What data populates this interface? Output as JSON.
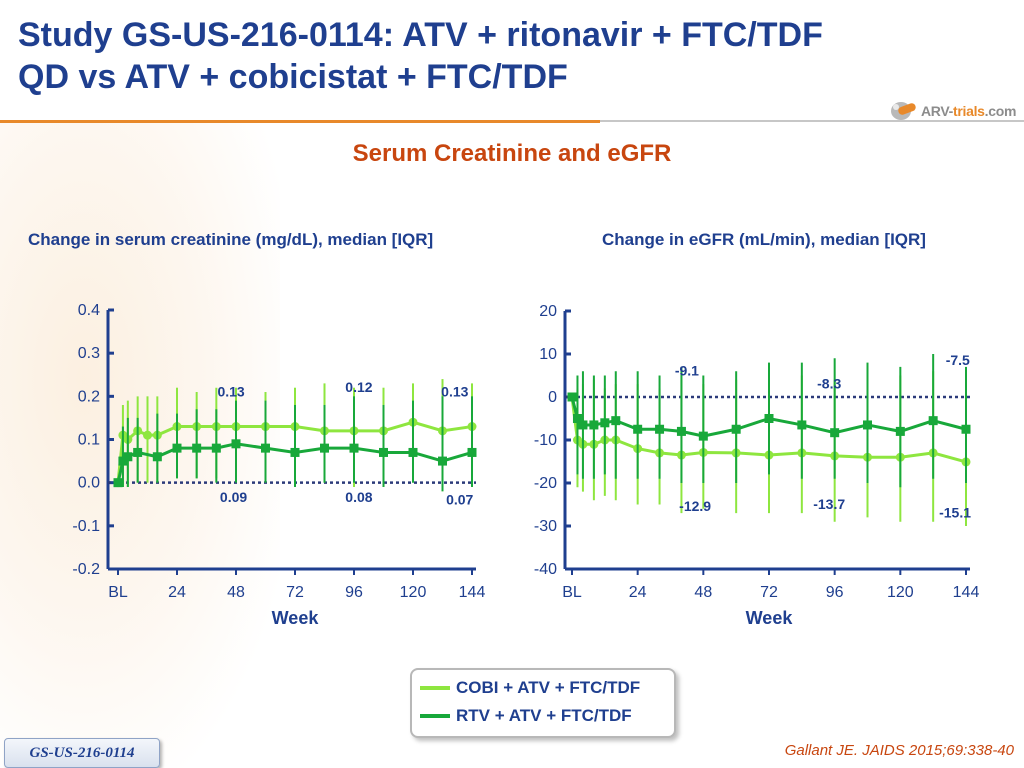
{
  "title_lines": [
    "Study GS-US-216-0114: ATV + ritonavir + FTC/TDF",
    "QD vs ATV + cobicistat + FTC/TDF"
  ],
  "logo": {
    "part1": "ARV-",
    "part2": "trials",
    "part3": ".com"
  },
  "subtitle": "Serum Creatinine and eGFR",
  "legend": {
    "cobi": {
      "label": "COBI + ATV + FTC/TDF",
      "color": "#8ee63f"
    },
    "rtv": {
      "label": "RTV + ATV + FTC/TDF",
      "color": "#18a83a"
    }
  },
  "badge": "GS-US-216-0114",
  "citation": "Gallant JE. JAIDS 2015;69:338-40",
  "chart_data": [
    {
      "type": "line",
      "title": "Change in serum creatinine (mg/dL), median [IQR]",
      "xlabel": "Week",
      "ylabel": "",
      "x_ticks": [
        0,
        24,
        48,
        72,
        96,
        120,
        144
      ],
      "x_tick_labels": [
        "BL",
        "24",
        "48",
        "72",
        "96",
        "120",
        "144"
      ],
      "xlim": [
        0,
        144
      ],
      "ylim": [
        -0.2,
        0.4
      ],
      "y_ticks": [
        -0.2,
        -0.1,
        0.0,
        0.1,
        0.2,
        0.3,
        0.4
      ],
      "y_tick_labels": [
        "-0.2",
        "-0.1",
        "0.0",
        "0.1",
        "0.2",
        "0.3",
        "0.4"
      ],
      "reference_line": 0,
      "series": [
        {
          "name": "COBI + ATV + FTC/TDF",
          "color": "#8ee63f",
          "marker": "circle",
          "x": [
            0,
            2,
            4,
            8,
            12,
            16,
            24,
            32,
            40,
            48,
            60,
            72,
            84,
            96,
            108,
            120,
            132,
            144
          ],
          "y": [
            0.0,
            0.11,
            0.1,
            0.12,
            0.11,
            0.11,
            0.13,
            0.13,
            0.13,
            0.13,
            0.13,
            0.13,
            0.12,
            0.12,
            0.12,
            0.14,
            0.12,
            0.13
          ],
          "y_low": [
            -0.01,
            -0.01,
            -0.01,
            0.0,
            0.0,
            0.0,
            0.01,
            0.01,
            0.01,
            0.01,
            0.0,
            0.01,
            0.0,
            -0.01,
            0.0,
            0.0,
            -0.02,
            0.0
          ],
          "y_high": [
            0.0,
            0.18,
            0.19,
            0.2,
            0.2,
            0.2,
            0.22,
            0.21,
            0.22,
            0.22,
            0.21,
            0.22,
            0.23,
            0.22,
            0.22,
            0.23,
            0.24,
            0.23
          ]
        },
        {
          "name": "RTV + ATV + FTC/TDF",
          "color": "#18a83a",
          "marker": "square",
          "x": [
            0,
            2,
            4,
            8,
            16,
            24,
            32,
            40,
            48,
            60,
            72,
            84,
            96,
            108,
            120,
            132,
            144
          ],
          "y": [
            0.0,
            0.05,
            0.06,
            0.07,
            0.06,
            0.08,
            0.08,
            0.08,
            0.09,
            0.08,
            0.07,
            0.08,
            0.08,
            0.07,
            0.07,
            0.05,
            0.07
          ],
          "y_low": [
            0.0,
            -0.01,
            -0.01,
            0.0,
            0.0,
            0.01,
            0.01,
            0.0,
            0.0,
            0.0,
            -0.01,
            0.0,
            0.0,
            -0.01,
            0.0,
            -0.02,
            -0.01
          ],
          "y_high": [
            0.0,
            0.13,
            0.15,
            0.15,
            0.16,
            0.16,
            0.17,
            0.17,
            0.19,
            0.19,
            0.18,
            0.18,
            0.2,
            0.18,
            0.19,
            0.2,
            0.2
          ]
        }
      ],
      "annotations": [
        {
          "text": "0.13",
          "x": 46,
          "y": 0.2
        },
        {
          "text": "0.12",
          "x": 98,
          "y": 0.21
        },
        {
          "text": "0.13",
          "x": 137,
          "y": 0.2
        },
        {
          "text": "0.09",
          "x": 47,
          "y": -0.045
        },
        {
          "text": "0.08",
          "x": 98,
          "y": -0.045
        },
        {
          "text": "0.07",
          "x": 139,
          "y": -0.05
        }
      ]
    },
    {
      "type": "line",
      "title": "Change in eGFR (mL/min), median [IQR]",
      "xlabel": "Week",
      "ylabel": "",
      "x_ticks": [
        0,
        24,
        48,
        72,
        96,
        120,
        144
      ],
      "x_tick_labels": [
        "BL",
        "24",
        "48",
        "72",
        "96",
        "120",
        "144"
      ],
      "xlim": [
        0,
        144
      ],
      "ylim": [
        -40,
        20
      ],
      "y_ticks": [
        -40,
        -30,
        -20,
        -10,
        0,
        10,
        20
      ],
      "y_tick_labels": [
        "-40",
        "-30",
        "-20",
        "-10",
        "0",
        "10",
        "20"
      ],
      "reference_line": 0,
      "series": [
        {
          "name": "COBI + ATV + FTC/TDF",
          "color": "#8ee63f",
          "marker": "circle",
          "x": [
            0,
            2,
            4,
            8,
            12,
            16,
            24,
            32,
            40,
            48,
            60,
            72,
            84,
            96,
            108,
            120,
            132,
            144
          ],
          "y": [
            0,
            -10,
            -11,
            -11,
            -10,
            -10,
            -12,
            -13,
            -13.5,
            -12.9,
            -13,
            -13.5,
            -13,
            -13.7,
            -14,
            -14,
            -13,
            -15.1
          ],
          "y_low": [
            0,
            -21,
            -22,
            -24,
            -23,
            -24,
            -25,
            -25,
            -27,
            -26,
            -27,
            -27,
            -27,
            -29,
            -28,
            -29,
            -29,
            -30
          ],
          "y_high": [
            0,
            2,
            3,
            4,
            2,
            3,
            3,
            2,
            4,
            3,
            4,
            4,
            5,
            4,
            5,
            5,
            6,
            4
          ]
        },
        {
          "name": "RTV + ATV + FTC/TDF",
          "color": "#18a83a",
          "marker": "square",
          "x": [
            0,
            2,
            4,
            8,
            12,
            16,
            24,
            32,
            40,
            48,
            60,
            72,
            84,
            96,
            108,
            120,
            132,
            144
          ],
          "y": [
            0,
            -5,
            -6.5,
            -6.5,
            -6,
            -5.5,
            -7.5,
            -7.5,
            -8,
            -9.1,
            -7.5,
            -5,
            -6.5,
            -8.3,
            -6.5,
            -8,
            -5.5,
            -7.5
          ],
          "y_low": [
            0,
            -18,
            -19,
            -19,
            -18,
            -19,
            -19,
            -19,
            -20,
            -20,
            -20,
            -18,
            -19,
            -19,
            -20,
            -21,
            -19,
            -20
          ],
          "y_high": [
            0,
            5,
            6,
            5,
            5,
            6,
            6,
            5,
            7,
            5,
            6,
            8,
            8,
            9,
            8,
            7,
            10,
            7
          ]
        }
      ],
      "annotations": [
        {
          "text": "-9.1",
          "x": 42,
          "y": 5
        },
        {
          "text": "-8.3",
          "x": 94,
          "y": 2
        },
        {
          "text": "-7.5",
          "x": 141,
          "y": 7.5
        },
        {
          "text": "-12.9",
          "x": 45,
          "y": -26.5
        },
        {
          "text": "-13.7",
          "x": 94,
          "y": -26
        },
        {
          "text": "-15.1",
          "x": 140,
          "y": -28
        }
      ]
    }
  ]
}
